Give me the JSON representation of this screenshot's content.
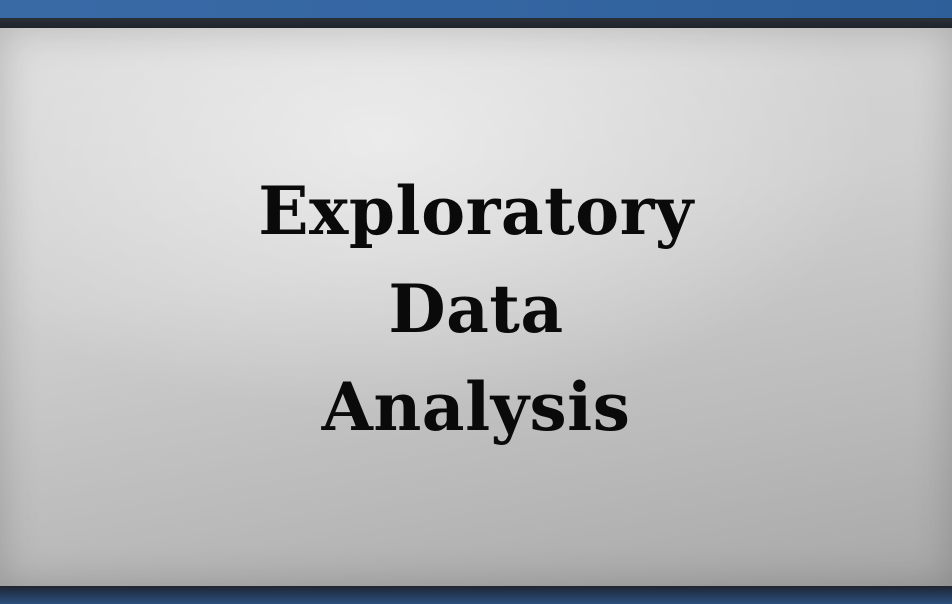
{
  "slide": {
    "title_lines": [
      "Exploratory",
      "Data",
      "Analysis"
    ]
  },
  "colors": {
    "top_band": "#3466a3",
    "frame_dark": "#1f242c",
    "slide_light": "#d9d9d9",
    "slide_dark": "#a7a7a7",
    "text": "#0a0a0a"
  }
}
